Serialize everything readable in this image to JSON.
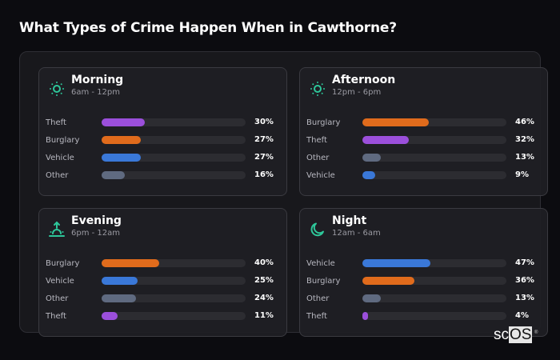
{
  "title": "What Types of Crime Happen When in Cawthorne?",
  "colors": {
    "Theft": "#9b4fdb",
    "Burglary": "#e06b1c",
    "Vehicle": "#3a78d8",
    "Other": "#5f6a80",
    "accent": "#2ec79a"
  },
  "cards": [
    {
      "name": "Morning",
      "range": "6am - 12pm",
      "icon": "sun-icon",
      "rows": [
        {
          "label": "Theft",
          "value": 30,
          "pct": "30%"
        },
        {
          "label": "Burglary",
          "value": 27,
          "pct": "27%"
        },
        {
          "label": "Vehicle",
          "value": 27,
          "pct": "27%"
        },
        {
          "label": "Other",
          "value": 16,
          "pct": "16%"
        }
      ]
    },
    {
      "name": "Afternoon",
      "range": "12pm - 6pm",
      "icon": "sun-icon",
      "rows": [
        {
          "label": "Burglary",
          "value": 46,
          "pct": "46%"
        },
        {
          "label": "Theft",
          "value": 32,
          "pct": "32%"
        },
        {
          "label": "Other",
          "value": 13,
          "pct": "13%"
        },
        {
          "label": "Vehicle",
          "value": 9,
          "pct": "9%"
        }
      ]
    },
    {
      "name": "Evening",
      "range": "6pm - 12am",
      "icon": "sunset-icon",
      "rows": [
        {
          "label": "Burglary",
          "value": 40,
          "pct": "40%"
        },
        {
          "label": "Vehicle",
          "value": 25,
          "pct": "25%"
        },
        {
          "label": "Other",
          "value": 24,
          "pct": "24%"
        },
        {
          "label": "Theft",
          "value": 11,
          "pct": "11%"
        }
      ]
    },
    {
      "name": "Night",
      "range": "12am - 6am",
      "icon": "moon-icon",
      "rows": [
        {
          "label": "Vehicle",
          "value": 47,
          "pct": "47%"
        },
        {
          "label": "Burglary",
          "value": 36,
          "pct": "36%"
        },
        {
          "label": "Other",
          "value": 13,
          "pct": "13%"
        },
        {
          "label": "Theft",
          "value": 4,
          "pct": "4%"
        }
      ]
    }
  ],
  "logo": {
    "sc": "sc",
    "os": "OS",
    "reg": "®"
  },
  "chart_data": [
    {
      "type": "bar",
      "title": "Morning",
      "subtitle": "6am - 12pm",
      "categories": [
        "Theft",
        "Burglary",
        "Vehicle",
        "Other"
      ],
      "values": [
        30,
        27,
        27,
        16
      ],
      "orientation": "horizontal",
      "xlim": [
        0,
        100
      ]
    },
    {
      "type": "bar",
      "title": "Afternoon",
      "subtitle": "12pm - 6pm",
      "categories": [
        "Burglary",
        "Theft",
        "Other",
        "Vehicle"
      ],
      "values": [
        46,
        32,
        13,
        9
      ],
      "orientation": "horizontal",
      "xlim": [
        0,
        100
      ]
    },
    {
      "type": "bar",
      "title": "Evening",
      "subtitle": "6pm - 12am",
      "categories": [
        "Burglary",
        "Vehicle",
        "Other",
        "Theft"
      ],
      "values": [
        40,
        25,
        24,
        11
      ],
      "orientation": "horizontal",
      "xlim": [
        0,
        100
      ]
    },
    {
      "type": "bar",
      "title": "Night",
      "subtitle": "12am - 6am",
      "categories": [
        "Vehicle",
        "Burglary",
        "Other",
        "Theft"
      ],
      "values": [
        47,
        36,
        13,
        4
      ],
      "orientation": "horizontal",
      "xlim": [
        0,
        100
      ]
    }
  ]
}
